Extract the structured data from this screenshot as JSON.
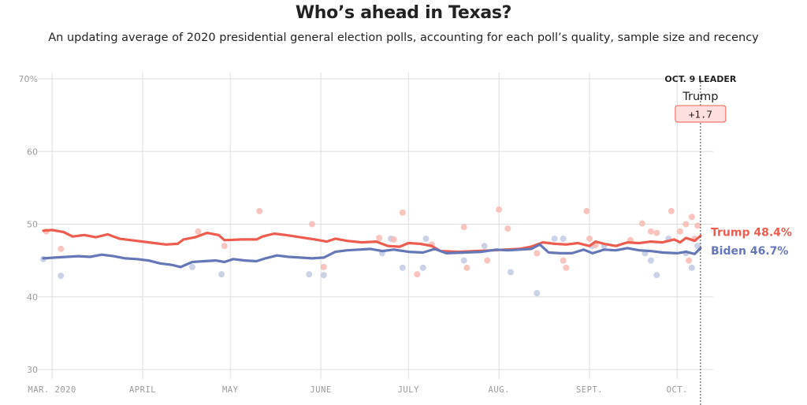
{
  "title": "Who’s ahead in Texas?",
  "subtitle": "An updating average of 2020 presidential general election polls, accounting for each poll’s quality, sample size and recency",
  "leader": {
    "heading": "OCT. 9 LEADER",
    "name": "Trump",
    "margin": "+1.7"
  },
  "colors": {
    "trump": "#ec5c4f",
    "biden": "#6577b7",
    "trump_dot": "#f8b9b3",
    "biden_dot": "#c2c9e3",
    "grid": "#dddddd"
  },
  "chart_data": {
    "type": "line",
    "title": "Who’s ahead in Texas?",
    "subtitle": "An updating average of 2020 presidential general election polls, accounting for each poll’s quality, sample size and recency",
    "ylim": [
      30,
      70
    ],
    "y_ticks": [
      "70%",
      "60",
      "50",
      "40",
      "30"
    ],
    "y_tick_values": [
      70,
      60,
      50,
      40,
      30
    ],
    "x_range": [
      "2020-02-27",
      "2020-10-12"
    ],
    "month_ticks": [
      {
        "date": "2020-03-01",
        "label": "MAR. 2020"
      },
      {
        "date": "2020-04-01",
        "label": "APRIL"
      },
      {
        "date": "2020-05-01",
        "label": "MAY"
      },
      {
        "date": "2020-06-01",
        "label": "JUNE"
      },
      {
        "date": "2020-07-01",
        "label": "JULY"
      },
      {
        "date": "2020-08-01",
        "label": "AUG."
      },
      {
        "date": "2020-09-01",
        "label": "SEPT."
      },
      {
        "date": "2020-10-01",
        "label": "OCT."
      }
    ],
    "grid": true,
    "series": [
      {
        "name": "Trump",
        "end_label": "Trump 48.4%",
        "points": [
          [
            "2020-02-27",
            49.1
          ],
          [
            "2020-03-01",
            49.2
          ],
          [
            "2020-03-05",
            48.9
          ],
          [
            "2020-03-08",
            48.3
          ],
          [
            "2020-03-12",
            48.5
          ],
          [
            "2020-03-16",
            48.2
          ],
          [
            "2020-03-20",
            48.6
          ],
          [
            "2020-03-24",
            48.0
          ],
          [
            "2020-03-28",
            47.8
          ],
          [
            "2020-04-01",
            47.6
          ],
          [
            "2020-04-05",
            47.4
          ],
          [
            "2020-04-09",
            47.2
          ],
          [
            "2020-04-13",
            47.3
          ],
          [
            "2020-04-15",
            47.9
          ],
          [
            "2020-04-19",
            48.2
          ],
          [
            "2020-04-23",
            48.8
          ],
          [
            "2020-04-27",
            48.5
          ],
          [
            "2020-04-29",
            47.8
          ],
          [
            "2020-05-05",
            47.9
          ],
          [
            "2020-05-10",
            47.9
          ],
          [
            "2020-05-12",
            48.3
          ],
          [
            "2020-05-16",
            48.7
          ],
          [
            "2020-05-20",
            48.5
          ],
          [
            "2020-05-25",
            48.2
          ],
          [
            "2020-05-30",
            47.9
          ],
          [
            "2020-06-03",
            47.6
          ],
          [
            "2020-06-06",
            48.0
          ],
          [
            "2020-06-10",
            47.7
          ],
          [
            "2020-06-15",
            47.5
          ],
          [
            "2020-06-20",
            47.6
          ],
          [
            "2020-06-24",
            47.0
          ],
          [
            "2020-06-28",
            46.9
          ],
          [
            "2020-07-01",
            47.4
          ],
          [
            "2020-07-05",
            47.3
          ],
          [
            "2020-07-09",
            47.0
          ],
          [
            "2020-07-12",
            46.3
          ],
          [
            "2020-07-18",
            46.2
          ],
          [
            "2020-07-24",
            46.3
          ],
          [
            "2020-07-30",
            46.4
          ],
          [
            "2020-08-03",
            46.5
          ],
          [
            "2020-08-08",
            46.6
          ],
          [
            "2020-08-12",
            46.9
          ],
          [
            "2020-08-16",
            47.5
          ],
          [
            "2020-08-20",
            47.3
          ],
          [
            "2020-08-24",
            47.2
          ],
          [
            "2020-08-28",
            47.4
          ],
          [
            "2020-09-01",
            47.0
          ],
          [
            "2020-09-03",
            47.6
          ],
          [
            "2020-09-06",
            47.3
          ],
          [
            "2020-09-10",
            47.0
          ],
          [
            "2020-09-14",
            47.5
          ],
          [
            "2020-09-18",
            47.4
          ],
          [
            "2020-09-22",
            47.6
          ],
          [
            "2020-09-26",
            47.5
          ],
          [
            "2020-09-30",
            47.9
          ],
          [
            "2020-10-02",
            47.5
          ],
          [
            "2020-10-04",
            48.1
          ],
          [
            "2020-10-07",
            47.7
          ],
          [
            "2020-10-09",
            48.4
          ]
        ]
      },
      {
        "name": "Biden",
        "end_label": "Biden 46.7%",
        "points": [
          [
            "2020-02-27",
            45.3
          ],
          [
            "2020-03-02",
            45.4
          ],
          [
            "2020-03-06",
            45.5
          ],
          [
            "2020-03-10",
            45.6
          ],
          [
            "2020-03-14",
            45.5
          ],
          [
            "2020-03-18",
            45.8
          ],
          [
            "2020-03-22",
            45.6
          ],
          [
            "2020-03-26",
            45.3
          ],
          [
            "2020-03-30",
            45.2
          ],
          [
            "2020-04-03",
            45.0
          ],
          [
            "2020-04-07",
            44.6
          ],
          [
            "2020-04-11",
            44.4
          ],
          [
            "2020-04-14",
            44.1
          ],
          [
            "2020-04-18",
            44.8
          ],
          [
            "2020-04-22",
            44.9
          ],
          [
            "2020-04-26",
            45.0
          ],
          [
            "2020-04-29",
            44.8
          ],
          [
            "2020-05-02",
            45.2
          ],
          [
            "2020-05-06",
            45.0
          ],
          [
            "2020-05-10",
            44.9
          ],
          [
            "2020-05-13",
            45.3
          ],
          [
            "2020-05-17",
            45.7
          ],
          [
            "2020-05-21",
            45.5
          ],
          [
            "2020-05-25",
            45.4
          ],
          [
            "2020-05-29",
            45.3
          ],
          [
            "2020-06-02",
            45.4
          ],
          [
            "2020-06-06",
            46.2
          ],
          [
            "2020-06-10",
            46.4
          ],
          [
            "2020-06-14",
            46.5
          ],
          [
            "2020-06-18",
            46.6
          ],
          [
            "2020-06-22",
            46.3
          ],
          [
            "2020-06-26",
            46.5
          ],
          [
            "2020-07-01",
            46.2
          ],
          [
            "2020-07-06",
            46.1
          ],
          [
            "2020-07-10",
            46.6
          ],
          [
            "2020-07-14",
            46.0
          ],
          [
            "2020-07-20",
            46.1
          ],
          [
            "2020-07-26",
            46.2
          ],
          [
            "2020-07-31",
            46.5
          ],
          [
            "2020-08-04",
            46.4
          ],
          [
            "2020-08-08",
            46.5
          ],
          [
            "2020-08-12",
            46.6
          ],
          [
            "2020-08-15",
            47.2
          ],
          [
            "2020-08-18",
            46.1
          ],
          [
            "2020-08-22",
            46.0
          ],
          [
            "2020-08-26",
            46.0
          ],
          [
            "2020-08-30",
            46.5
          ],
          [
            "2020-09-02",
            46.0
          ],
          [
            "2020-09-06",
            46.5
          ],
          [
            "2020-09-10",
            46.4
          ],
          [
            "2020-09-14",
            46.7
          ],
          [
            "2020-09-18",
            46.4
          ],
          [
            "2020-09-22",
            46.3
          ],
          [
            "2020-09-26",
            46.1
          ],
          [
            "2020-10-01",
            46.0
          ],
          [
            "2020-10-04",
            46.2
          ],
          [
            "2020-10-07",
            45.9
          ],
          [
            "2020-10-09",
            46.7
          ]
        ]
      }
    ],
    "polls": {
      "Trump": [
        [
          "2020-02-28",
          49.0
        ],
        [
          "2020-03-04",
          46.6
        ],
        [
          "2020-04-20",
          49.0
        ],
        [
          "2020-04-29",
          47.0
        ],
        [
          "2020-05-11",
          51.8
        ],
        [
          "2020-05-29",
          50.0
        ],
        [
          "2020-06-02",
          44.1
        ],
        [
          "2020-06-21",
          48.1
        ],
        [
          "2020-06-26",
          47.9
        ],
        [
          "2020-06-29",
          51.6
        ],
        [
          "2020-07-04",
          43.1
        ],
        [
          "2020-07-09",
          47.2
        ],
        [
          "2020-07-20",
          49.6
        ],
        [
          "2020-07-21",
          44.0
        ],
        [
          "2020-07-28",
          45.0
        ],
        [
          "2020-08-01",
          52.0
        ],
        [
          "2020-08-04",
          49.4
        ],
        [
          "2020-08-14",
          46.0
        ],
        [
          "2020-08-23",
          45.0
        ],
        [
          "2020-08-24",
          44.0
        ],
        [
          "2020-08-31",
          51.8
        ],
        [
          "2020-09-01",
          48.0
        ],
        [
          "2020-09-03",
          47.1
        ],
        [
          "2020-09-15",
          47.8
        ],
        [
          "2020-09-19",
          50.1
        ],
        [
          "2020-09-22",
          49.0
        ],
        [
          "2020-09-24",
          48.8
        ],
        [
          "2020-09-29",
          51.8
        ],
        [
          "2020-10-02",
          49.0
        ],
        [
          "2020-10-04",
          50.0
        ],
        [
          "2020-10-05",
          45.0
        ],
        [
          "2020-10-06",
          51.0
        ],
        [
          "2020-10-07",
          48.0
        ],
        [
          "2020-10-08",
          49.8
        ]
      ],
      "Biden": [
        [
          "2020-02-27",
          45.2
        ],
        [
          "2020-03-04",
          42.9
        ],
        [
          "2020-04-18",
          44.1
        ],
        [
          "2020-04-28",
          43.1
        ],
        [
          "2020-05-28",
          43.1
        ],
        [
          "2020-06-02",
          43.0
        ],
        [
          "2020-06-22",
          46.0
        ],
        [
          "2020-06-25",
          48.0
        ],
        [
          "2020-06-29",
          44.0
        ],
        [
          "2020-07-06",
          44.0
        ],
        [
          "2020-07-07",
          48.0
        ],
        [
          "2020-07-20",
          45.0
        ],
        [
          "2020-07-27",
          47.0
        ],
        [
          "2020-08-05",
          43.4
        ],
        [
          "2020-08-14",
          40.5
        ],
        [
          "2020-08-20",
          48.0
        ],
        [
          "2020-08-23",
          48.0
        ],
        [
          "2020-09-02",
          47.0
        ],
        [
          "2020-09-06",
          47.0
        ],
        [
          "2020-09-20",
          46.0
        ],
        [
          "2020-09-22",
          45.0
        ],
        [
          "2020-09-24",
          43.0
        ],
        [
          "2020-09-28",
          48.0
        ],
        [
          "2020-10-04",
          46.0
        ],
        [
          "2020-10-06",
          44.0
        ],
        [
          "2020-10-08",
          47.0
        ]
      ]
    },
    "marker_date": "2020-10-09"
  }
}
